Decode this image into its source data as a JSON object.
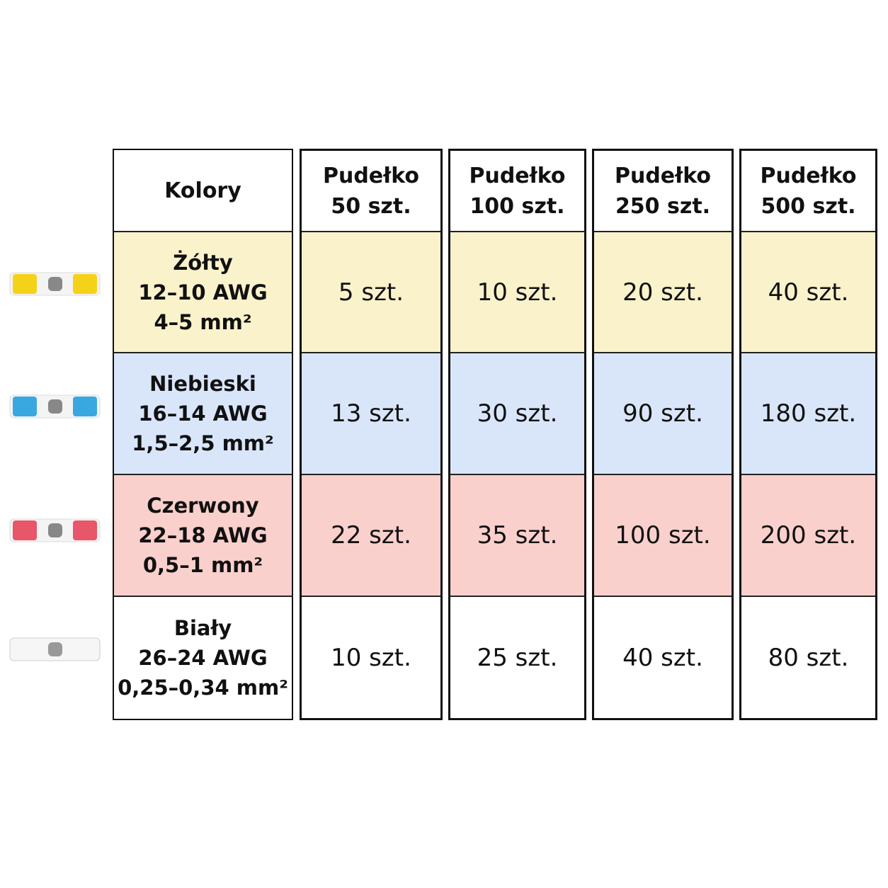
{
  "table": {
    "header": [
      [
        "Kolory"
      ],
      [
        "Pudełko",
        "50 szt."
      ],
      [
        "Pudełko",
        "100 szt."
      ],
      [
        "Pudełko",
        "250 szt."
      ],
      [
        "Pudełko",
        "500 szt."
      ]
    ],
    "rows": [
      {
        "label": [
          "Żółty",
          "12–10 AWG",
          "4–5 mm²"
        ],
        "color": "#faf2cb",
        "cells": [
          "5 szt.",
          "10 szt.",
          "20 szt.",
          "40 szt."
        ]
      },
      {
        "label": [
          "Niebieski",
          "16–14 AWG",
          "1,5–2,5 mm²"
        ],
        "color": "#d9e6fa",
        "cells": [
          "13 szt.",
          "30 szt.",
          "90 szt.",
          "180 szt."
        ]
      },
      {
        "label": [
          "Czerwony",
          "22–18 AWG",
          "0,5–1 mm²"
        ],
        "color": "#fad0cc",
        "cells": [
          "22 szt.",
          "35 szt.",
          "100 szt.",
          "200 szt."
        ]
      },
      {
        "label": [
          "Biały",
          "26–24 AWG",
          "0,25–0,34 mm²"
        ],
        "color": "#ffffff",
        "cells": [
          "10 szt.",
          "25 szt.",
          "40 szt.",
          "80 szt."
        ]
      }
    ]
  }
}
